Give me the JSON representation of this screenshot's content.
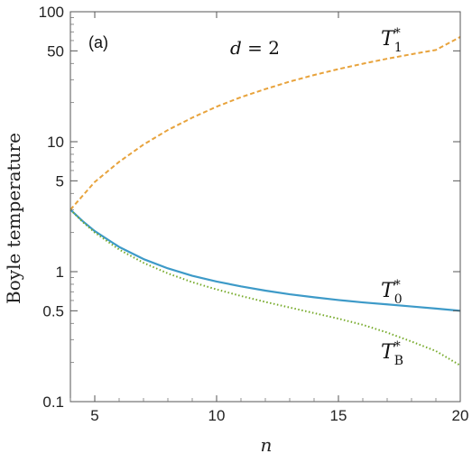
{
  "chart_data": {
    "type": "line",
    "panel_label": "(a)",
    "annotation": "d = 2",
    "annotation_var": "d",
    "annotation_rest": " = 2",
    "xlabel": "n",
    "ylabel": "Boyle temperature",
    "xlim": [
      4,
      20
    ],
    "ylim": [
      0.1,
      100
    ],
    "yscale": "log",
    "x_ticks": [
      5,
      10,
      15,
      20
    ],
    "x_tick_labels": [
      "5",
      "10",
      "15",
      "20"
    ],
    "y_ticks": [
      0.1,
      0.5,
      1,
      5,
      10,
      50,
      100
    ],
    "y_tick_labels": [
      "0.1",
      "0.5",
      "1",
      "5",
      "10",
      "50",
      "100"
    ],
    "grid": false,
    "series": [
      {
        "name": "T*1",
        "label_main": "T",
        "label_sup": "*",
        "label_sub": "1",
        "color": "#E8A33C",
        "style": "dashed",
        "x": [
          4,
          5,
          6,
          7,
          8,
          9,
          10,
          11,
          12,
          13,
          14,
          15,
          16,
          17,
          18,
          19,
          20
        ],
        "y": [
          3.0,
          4.9,
          7.0,
          9.5,
          12.3,
          15.3,
          18.6,
          22.0,
          25.4,
          29.0,
          32.6,
          36.2,
          39.8,
          43.5,
          47.1,
          50.8,
          64.0
        ]
      },
      {
        "name": "T*0",
        "label_main": "T",
        "label_sup": "*",
        "label_sub": "0",
        "color": "#3D9AC8",
        "style": "solid",
        "x": [
          4,
          4.5,
          5,
          6,
          7,
          8,
          9,
          10,
          11,
          12,
          13,
          14,
          15,
          16,
          17,
          18,
          19,
          20
        ],
        "y": [
          3.0,
          2.45,
          2.05,
          1.55,
          1.25,
          1.06,
          0.93,
          0.84,
          0.77,
          0.715,
          0.67,
          0.635,
          0.605,
          0.58,
          0.56,
          0.54,
          0.52,
          0.5
        ]
      },
      {
        "name": "T*B",
        "label_main": "T",
        "label_sup": "*",
        "label_sub": "B",
        "color": "#76AA2A",
        "style": "dotted",
        "x": [
          4,
          4.5,
          5,
          6,
          7,
          8,
          9,
          10,
          11,
          12,
          13,
          14,
          15,
          16,
          17,
          18,
          19,
          20
        ],
        "y": [
          3.0,
          2.42,
          2.0,
          1.48,
          1.17,
          0.97,
          0.83,
          0.73,
          0.65,
          0.585,
          0.53,
          0.48,
          0.435,
          0.39,
          0.34,
          0.29,
          0.245,
          0.19
        ]
      }
    ]
  }
}
